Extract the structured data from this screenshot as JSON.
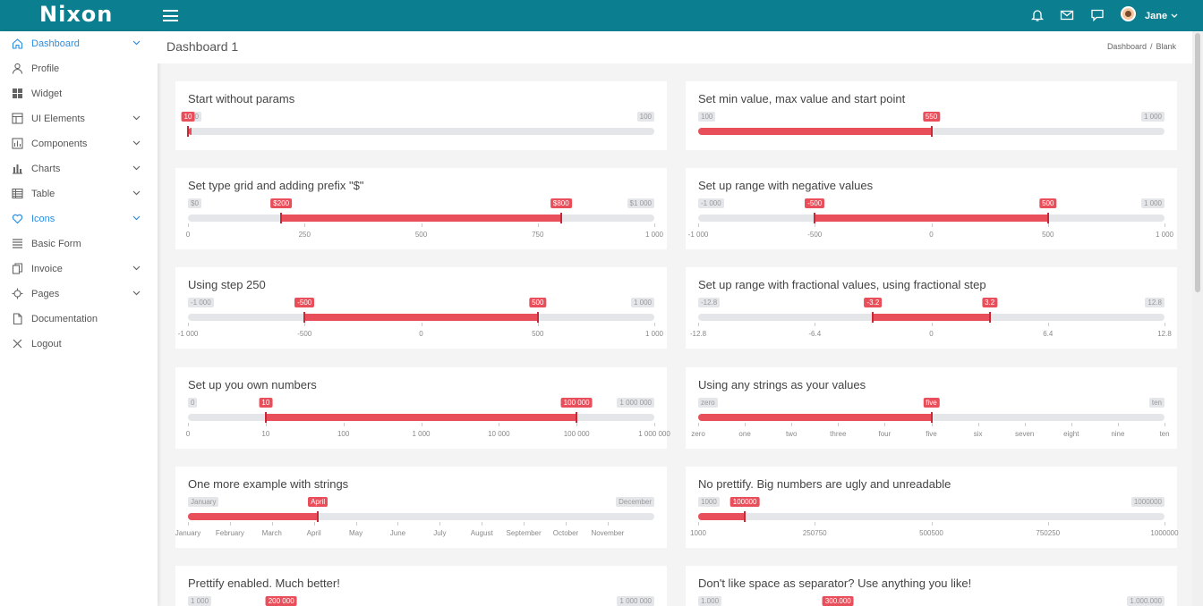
{
  "app": {
    "logo": "Nixon",
    "user": "Jane"
  },
  "header": {
    "title": "Dashboard 1",
    "crumb1": "Dashboard",
    "sep": "/",
    "crumb2": "Blank"
  },
  "nav": [
    {
      "label": "Dashboard",
      "icon": "home-icon",
      "chevron": true,
      "active": true
    },
    {
      "label": "Profile",
      "icon": "user-icon",
      "chevron": false
    },
    {
      "label": "Widget",
      "icon": "grid-icon",
      "chevron": false
    },
    {
      "label": "UI Elements",
      "icon": "layout-icon",
      "chevron": true
    },
    {
      "label": "Components",
      "icon": "components-icon",
      "chevron": true
    },
    {
      "label": "Charts",
      "icon": "chart-icon",
      "chevron": true
    },
    {
      "label": "Table",
      "icon": "table-icon",
      "chevron": true
    },
    {
      "label": "Icons",
      "icon": "heart-icon",
      "chevron": true,
      "active": true
    },
    {
      "label": "Basic Form",
      "icon": "form-icon",
      "chevron": false
    },
    {
      "label": "Invoice",
      "icon": "invoice-icon",
      "chevron": true
    },
    {
      "label": "Pages",
      "icon": "pages-icon",
      "chevron": true
    },
    {
      "label": "Documentation",
      "icon": "document-icon",
      "chevron": false
    },
    {
      "label": "Logout",
      "icon": "close-icon",
      "chevron": false
    }
  ],
  "sliders": [
    {
      "title": "Start without params",
      "min": "10",
      "max": "100",
      "type": "single",
      "from": 0,
      "labels": [
        "10"
      ]
    },
    {
      "title": "Set min value, max value and start point",
      "min": "100",
      "max": "1 000",
      "type": "single",
      "from": 0.5,
      "labels": [
        "550"
      ]
    },
    {
      "title": "Set type grid and adding prefix \"$\"",
      "min": "$0",
      "max": "$1 000",
      "type": "double",
      "from": 0.2,
      "to": 0.8,
      "labels": [
        "$200",
        "$800"
      ],
      "grid": [
        "0",
        "250",
        "500",
        "750",
        "1 000"
      ]
    },
    {
      "title": "Set up range with negative values",
      "min": "-1 000",
      "max": "1 000",
      "type": "double",
      "from": 0.25,
      "to": 0.75,
      "labels": [
        "-500",
        "500"
      ],
      "grid": [
        "-1 000",
        "-500",
        "0",
        "500",
        "1 000"
      ]
    },
    {
      "title": "Using step 250",
      "min": "-1 000",
      "max": "1 000",
      "type": "double",
      "from": 0.25,
      "to": 0.75,
      "labels": [
        "-500",
        "500"
      ],
      "grid": [
        "-1 000",
        "-500",
        "0",
        "500",
        "1 000"
      ]
    },
    {
      "title": "Set up range with fractional values, using fractional step",
      "min": "-12.8",
      "max": "12.8",
      "type": "double",
      "from": 0.375,
      "to": 0.625,
      "labels": [
        "-3.2",
        "3.2"
      ],
      "grid": [
        "-12.8",
        "-6.4",
        "0",
        "6.4",
        "12.8"
      ]
    },
    {
      "title": "Set up you own numbers",
      "min": "0",
      "max": "1 000 000",
      "type": "double",
      "from": 0.1667,
      "to": 0.8333,
      "labels": [
        "10",
        "100 000"
      ],
      "grid": [
        "0",
        "10",
        "100",
        "1 000",
        "10 000",
        "100 000",
        "1 000 000"
      ]
    },
    {
      "title": "Using any strings as your values",
      "min": "zero",
      "max": "ten",
      "type": "single",
      "from": 0.5,
      "labels": [
        "five"
      ],
      "grid": [
        "zero",
        "one",
        "two",
        "three",
        "four",
        "five",
        "six",
        "seven",
        "eight",
        "nine",
        "ten"
      ]
    },
    {
      "title": "One more example with strings",
      "min": "January",
      "max": "December",
      "type": "single",
      "from": 0.2785,
      "labels": [
        "April"
      ],
      "grid": [
        "January",
        "February",
        "March",
        "April",
        "May",
        "June",
        "July",
        "August",
        "September",
        "October",
        "November"
      ],
      "grid_end": 0.9
    }
  ],
  "sliders2": [
    {
      "title": "No prettify. Big numbers are ugly and unreadable",
      "min": "1000",
      "max": "1000000",
      "type": "single",
      "from": 0.1,
      "labels": [
        "100000"
      ],
      "grid": [
        "1000",
        "250750",
        "500500",
        "750250",
        "1000000"
      ]
    },
    {
      "title": "Prettify enabled. Much better!",
      "min": "1 000",
      "max": "1 000 000",
      "type": "single",
      "from": 0.2,
      "labels": [
        "200 000"
      ]
    },
    {
      "title": "Don't like space as separator? Use anything you like!",
      "min": "1.000",
      "max": "1.000.000",
      "type": "single",
      "from": 0.3,
      "labels": [
        "300.000"
      ]
    }
  ]
}
